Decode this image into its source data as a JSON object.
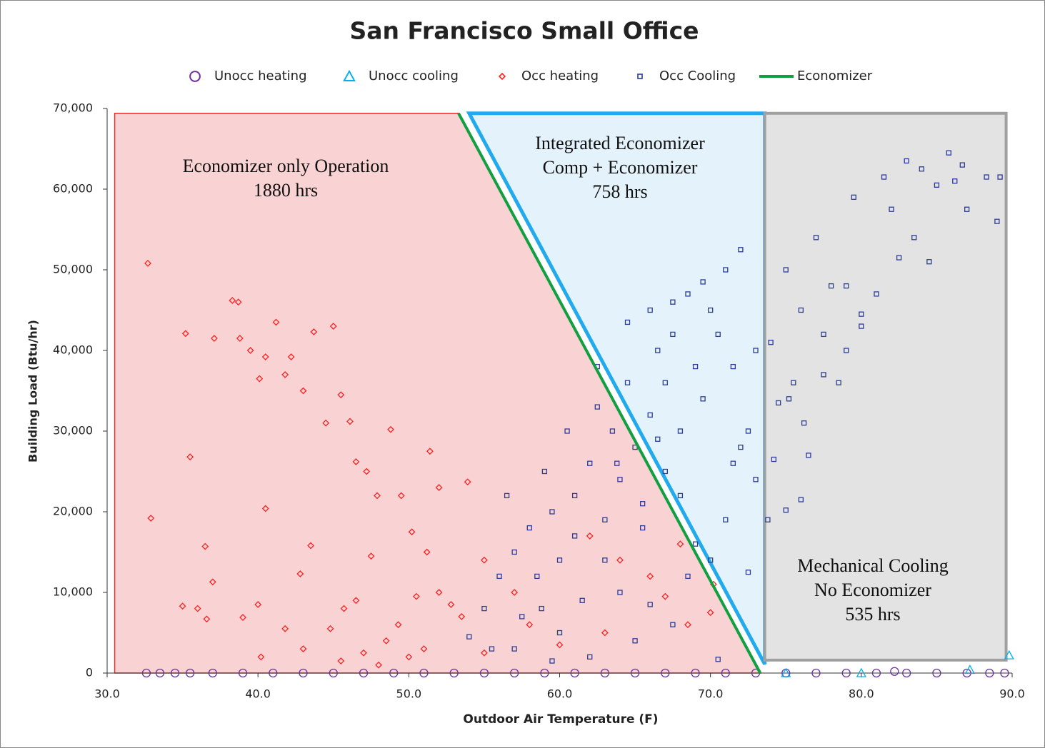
{
  "chart_data": {
    "type": "scatter",
    "title": "San Francisco Small Office",
    "x_label": "Outdoor Air Temperature (F)",
    "y_label": "Building Load (Btu/hr)",
    "xlim": [
      30,
      90
    ],
    "ylim": [
      0,
      70000
    ],
    "xticks": [
      {
        "value": 30,
        "label": "30.0"
      },
      {
        "value": 40,
        "label": "40.0"
      },
      {
        "value": 50,
        "label": "50.0"
      },
      {
        "value": 60,
        "label": "60.0"
      },
      {
        "value": 70,
        "label": "70.0"
      },
      {
        "value": 80,
        "label": "80.0"
      },
      {
        "value": 90,
        "label": "90.0"
      }
    ],
    "yticks": [
      0,
      {
        "value": 10000,
        "label": "10,000"
      },
      {
        "value": 20000,
        "label": "20,000"
      },
      {
        "value": 30000,
        "label": "30,000"
      },
      {
        "value": 40000,
        "label": "40,000"
      },
      {
        "value": 50000,
        "label": "50,000"
      },
      {
        "value": 60000,
        "label": "60,000"
      },
      {
        "value": 70000,
        "label": "70,000"
      }
    ],
    "grid": false,
    "legend": "top",
    "regions": [
      {
        "lines": [
          "Economizer only Operation",
          "1880 hrs"
        ],
        "color": "#e03030",
        "fill": "#f9d3d3",
        "x": [
          30.5,
          30.5,
          53.3,
          73.3
        ],
        "y": [
          0,
          69400,
          69400,
          0
        ]
      },
      {
        "lines": [
          "Integrated Economizer",
          "Comp + Economizer",
          "758 hrs"
        ],
        "color": "#22aaee",
        "fill": "#e4f3fb",
        "x": [
          54.0,
          73.6,
          73.6
        ],
        "y": [
          69400,
          69400,
          1100
        ]
      },
      {
        "lines": [
          "Mechanical Cooling",
          "No Economizer",
          "535 hrs"
        ],
        "color": "#a0a0a0",
        "fill": "#e3e3e3",
        "x": [
          73.6,
          89.6,
          89.6,
          73.6
        ],
        "y": [
          69400,
          69400,
          1600,
          1600
        ]
      }
    ],
    "series": [
      {
        "name": "Unocc heating",
        "color": "#7030a0",
        "marker": "circle",
        "x": [
          32.6,
          33.5,
          34.5,
          35.5,
          37,
          39,
          41,
          43,
          45,
          47,
          49,
          51,
          53,
          55,
          57,
          59,
          61,
          63,
          65,
          67,
          69,
          71,
          73,
          75,
          77,
          79,
          81,
          82.2,
          83,
          85,
          87,
          88.5,
          89.5
        ],
        "values": [
          0,
          0,
          0,
          0,
          0,
          0,
          0,
          0,
          0,
          0,
          0,
          0,
          0,
          0,
          0,
          0,
          0,
          0,
          0,
          0,
          0,
          0,
          0,
          0,
          0,
          0,
          0,
          200,
          0,
          0,
          0,
          0,
          0
        ]
      },
      {
        "name": "Unocc cooling",
        "color": "#00b0f0",
        "marker": "triangle",
        "x": [
          75,
          80,
          87.2,
          89.8
        ],
        "values": [
          0,
          0,
          400,
          2200
        ]
      },
      {
        "name": "Occ heating",
        "color": "#ff2020",
        "marker": "diamond",
        "x": [
          32.7,
          32.9,
          35.2,
          35.5,
          37.1,
          38.3,
          38.7,
          38.8,
          39.5,
          40.1,
          40.5,
          41.2,
          41.8,
          42.2,
          43.0,
          43.7,
          44.5,
          45.0,
          45.5,
          46.1,
          46.5,
          47.2,
          47.9,
          48.8,
          49.5,
          50.2,
          51.4,
          52.0,
          53.9,
          37.0,
          36.5,
          40.5,
          40.0,
          41.8,
          42.8,
          43.5,
          44.8,
          45.7,
          46.5,
          47.5,
          48.5,
          49.3,
          50.5,
          51.2,
          52.0,
          52.8,
          55.0,
          53.5,
          57.0,
          58.0,
          62.0,
          64.0,
          66.0,
          68.0,
          70.0,
          70.2,
          35.0,
          36.0,
          36.6,
          39.0,
          40.2,
          43.0,
          45.5,
          47.0,
          48.0,
          50.0,
          51.0,
          55.0,
          60.0,
          63.0,
          67.0,
          68.5
        ],
        "values": [
          50800,
          19200,
          42100,
          26800,
          41500,
          46200,
          46000,
          41500,
          40000,
          36500,
          39200,
          43500,
          37000,
          39200,
          35000,
          42300,
          31000,
          43000,
          34500,
          31200,
          26200,
          25000,
          22000,
          30200,
          22000,
          17500,
          27500,
          23000,
          23700,
          11300,
          15700,
          20400,
          8500,
          5500,
          12300,
          15800,
          5500,
          8000,
          9000,
          14500,
          4000,
          6000,
          9500,
          15000,
          10000,
          8500,
          14000,
          7000,
          10000,
          6000,
          17000,
          14000,
          12000,
          16000,
          7500,
          11000,
          8300,
          8000,
          6700,
          6900,
          2000,
          3000,
          1500,
          2500,
          1000,
          2000,
          3000,
          2500,
          3500,
          5000,
          9500,
          6000
        ]
      },
      {
        "name": "Occ Cooling",
        "color": "#2c3c98",
        "marker": "square",
        "x": [
          54.0,
          55.0,
          56.0,
          56.5,
          57.0,
          57.5,
          58.0,
          58.5,
          59.0,
          59.5,
          60.0,
          60.5,
          61.0,
          61.5,
          62.0,
          62.5,
          63.0,
          63.5,
          64.0,
          64.5,
          65.0,
          65.5,
          66.0,
          66.5,
          67.0,
          67.5,
          68.0,
          68.5,
          69.0,
          69.5,
          70.0,
          70.5,
          71.0,
          71.5,
          72.0,
          72.5,
          73.0,
          66.0,
          67.0,
          68.0,
          69.0,
          70.0,
          71.0,
          72.0,
          73.0,
          74.0,
          75.0,
          75.5,
          76.0,
          76.5,
          77.0,
          77.5,
          78.0,
          78.5,
          79.0,
          79.5,
          80.0,
          81.0,
          81.5,
          82.0,
          82.5,
          83.0,
          83.5,
          84.0,
          84.5,
          85.0,
          85.8,
          86.2,
          86.7,
          87.0,
          88.3,
          89.0,
          89.2,
          73.8,
          74.2,
          75.0,
          76.0,
          74.5,
          75.2,
          76.2,
          77.5,
          80.0,
          79.0,
          65.0,
          60.0,
          62.0,
          57.0,
          64.0,
          66.0,
          67.5,
          70.5,
          63.0,
          61.0,
          58.8,
          55.5,
          59.5,
          68.5,
          65.5,
          63.8,
          66.5,
          62.5,
          64.5,
          67.5,
          69.5,
          71.5,
          72.5
        ],
        "values": [
          4500,
          8000,
          12000,
          22000,
          15000,
          7000,
          18000,
          12000,
          25000,
          20000,
          14000,
          30000,
          22000,
          9000,
          26000,
          33000,
          19000,
          30000,
          24000,
          36000,
          28000,
          18000,
          32000,
          40000,
          36000,
          42000,
          30000,
          47000,
          38000,
          34000,
          45000,
          42000,
          50000,
          38000,
          52500,
          30000,
          24000,
          45000,
          25000,
          22000,
          16000,
          14000,
          19000,
          28000,
          40000,
          41000,
          50000,
          36000,
          45000,
          27000,
          54000,
          42000,
          48000,
          36000,
          40000,
          59000,
          43000,
          47000,
          61500,
          57500,
          51500,
          63500,
          54000,
          62500,
          51000,
          60500,
          64500,
          61000,
          63000,
          57500,
          61500,
          56000,
          61500,
          19000,
          26500,
          20200,
          21500,
          33500,
          34000,
          31000,
          37000,
          44500,
          48000,
          4000,
          5000,
          2000,
          3000,
          10000,
          8500,
          6000,
          1700,
          14000,
          17000,
          8000,
          3000,
          1500,
          12000,
          21000,
          26000,
          29000,
          38000,
          43500,
          46000,
          48500,
          26000,
          12500
        ]
      },
      {
        "name": "Economizer",
        "color": "#10a040",
        "marker": "line",
        "x": [
          53.3,
          73.3
        ],
        "values": [
          69400,
          0
        ]
      }
    ]
  }
}
